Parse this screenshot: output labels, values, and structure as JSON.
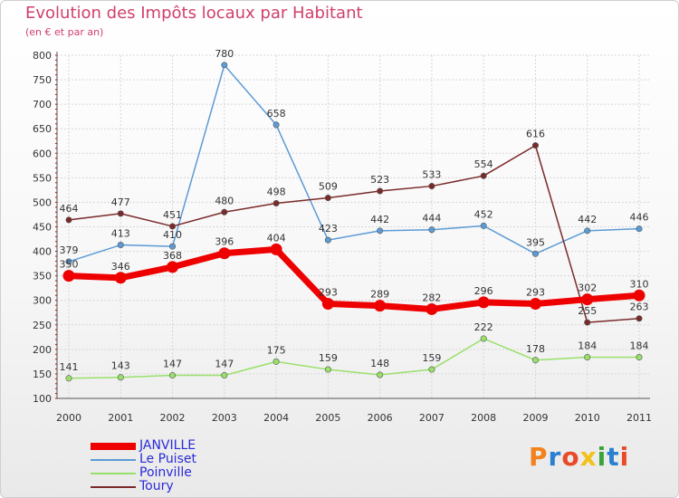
{
  "header": {
    "title": "Evolution des Impôts locaux par Habitant",
    "subtitle": "(en € et par an)"
  },
  "logo": {
    "text": "Proxiti",
    "colors": [
      "#f2811e",
      "#2a7fd0",
      "#e94b28",
      "#f2c21a",
      "#3aa43a",
      "#2a7fd0",
      "#e94b28"
    ]
  },
  "chart_data": {
    "type": "line",
    "title": "Evolution des Impôts locaux par Habitant",
    "subtitle": "(en € et par an)",
    "x": [
      "2000",
      "2001",
      "2002",
      "2003",
      "2004",
      "2005",
      "2006",
      "2007",
      "2008",
      "2009",
      "2010",
      "2011"
    ],
    "ylim": [
      100,
      800
    ],
    "yticks": [
      100,
      150,
      200,
      250,
      300,
      350,
      400,
      450,
      500,
      550,
      600,
      650,
      700,
      750,
      800
    ],
    "grid": true,
    "legend": "bottom-left",
    "series": [
      {
        "name": "JANVILLE",
        "color": "#ee0000",
        "thick": true,
        "values": [
          350,
          346,
          368,
          396,
          404,
          293,
          289,
          282,
          296,
          293,
          302,
          310
        ]
      },
      {
        "name": "Le Puiset",
        "color": "#5b9bd5",
        "thick": false,
        "values": [
          379,
          413,
          410,
          780,
          658,
          423,
          442,
          444,
          452,
          395,
          442,
          446
        ]
      },
      {
        "name": "Poinville",
        "color": "#99e06a",
        "thick": false,
        "values": [
          141,
          143,
          147,
          147,
          175,
          159,
          148,
          159,
          222,
          178,
          184,
          184
        ]
      },
      {
        "name": "Toury",
        "color": "#7a2a2a",
        "thick": false,
        "values": [
          464,
          477,
          451,
          480,
          498,
          509,
          523,
          533,
          554,
          616,
          255,
          263
        ]
      }
    ]
  }
}
